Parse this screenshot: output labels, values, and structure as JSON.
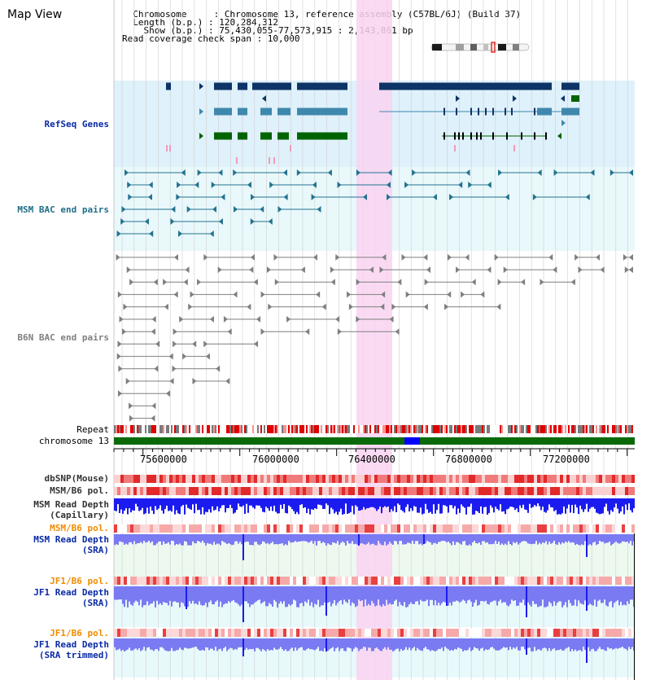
{
  "title": "Map View",
  "info": {
    "chromosome": "  Chromosome     : Chromosome 13, reference assembly (C57BL/6J) (Build 37)",
    "length": "  Length (b.p.) : 120,284,312",
    "show": "    Show (b.p.) : 75,430,055-77,573,915 : 2,143,861 bp",
    "span": "Read coverage check span : 10,000"
  },
  "tracks": {
    "refseq": "RefSeq Genes",
    "msm_bac": "MSM BAC end pairs",
    "b6n_bac": "B6N BAC end pairs",
    "repeat": "Repeat",
    "chromosome": "chromosome 13",
    "dbsnp": "dbSNP(Mouse)",
    "msm_b6_pol": "MSM/B6 pol.",
    "msm_depth_cap_1": "MSM Read Depth",
    "msm_depth_cap_2": "(Capillary)",
    "msm_b6_pol2": "MSM/B6 pol.",
    "msm_depth_sra_1": "MSM Read Depth",
    "msm_depth_sra_2": "(SRA)",
    "jf1_b6_pol": "JF1/B6 pol.",
    "jf1_depth_sra_1": "JF1 Read Depth",
    "jf1_depth_sra_2": "(SRA)",
    "jf1_b6_pol2": "JF1/B6 pol.",
    "jf1_depth_trim_1": "JF1 Read Depth",
    "jf1_depth_trim_2": "(SRA trimmed)"
  },
  "ruler": {
    "ticks": [
      "75600000",
      "76000000",
      "76400000",
      "76800000",
      "77200000"
    ]
  },
  "colors": {
    "refseq_bg": "#dff1fb",
    "msm_bg": "#e9f8fb",
    "highlight": "#f9d4f1",
    "gene_dark": "#0d3466",
    "gene_mid": "#3f88ad",
    "gene_green": "#006400",
    "msm_pair": "#23728f",
    "b6n_pair": "#7f7f7f",
    "chrom_bar": "#0a6a0a",
    "chrom_mark": "#0000ff",
    "depth_blue": "#1b1bf0",
    "depth_light": "#7a7af2",
    "label_blue": "#0a2aa5",
    "label_teal": "#1e6e88",
    "label_orange": "#f08c00"
  }
}
